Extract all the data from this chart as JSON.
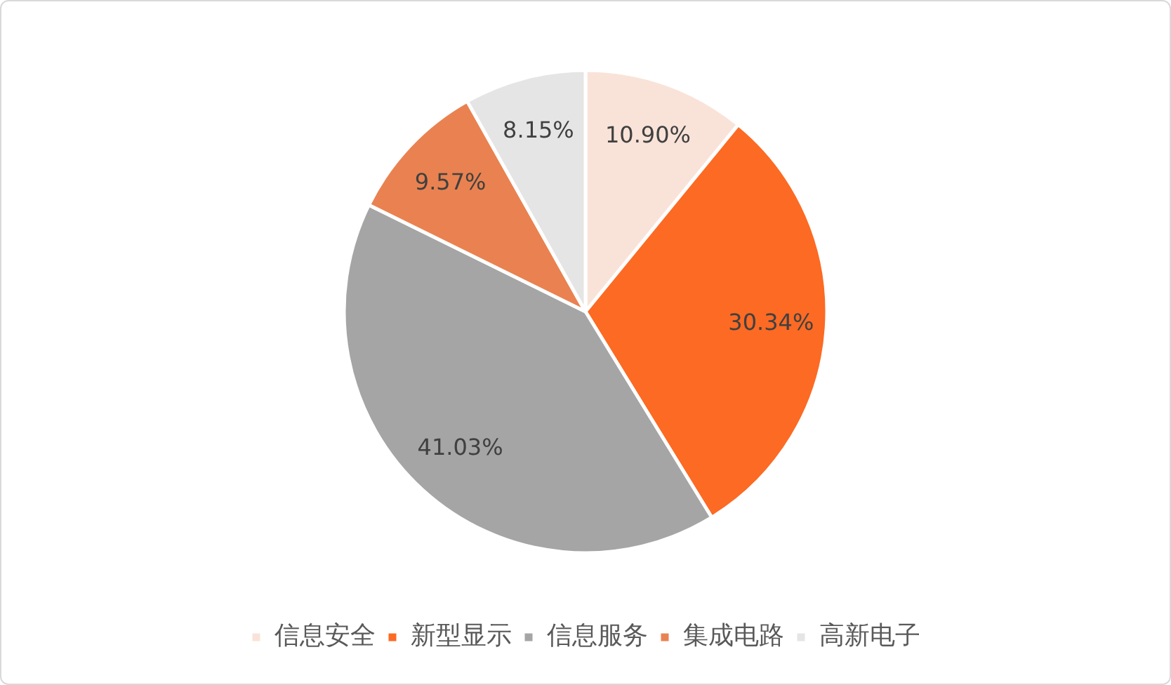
{
  "chart_data": {
    "type": "pie",
    "categories": [
      "信息安全",
      "新型显示",
      "信息服务",
      "集成电路",
      "高新电子"
    ],
    "values": [
      10.9,
      30.34,
      41.03,
      9.57,
      8.15
    ],
    "colors": [
      "#f9e3d8",
      "#fc6a23",
      "#a5a5a5",
      "#e98250",
      "#e5e5e5"
    ],
    "value_labels": [
      "10.90%",
      "30.34%",
      "41.03%",
      "9.57%",
      "8.15%"
    ],
    "legend": "bottom"
  }
}
